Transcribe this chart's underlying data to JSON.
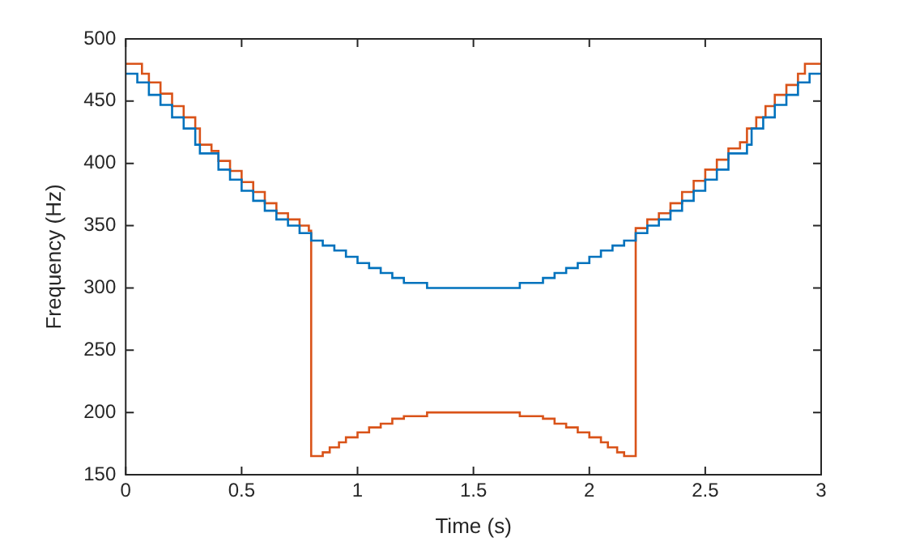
{
  "chart_data": {
    "type": "step",
    "xlabel": "Time (s)",
    "ylabel": "Frequency (Hz)",
    "xlim": [
      0,
      3
    ],
    "xticks": [
      0,
      0.5,
      1,
      1.5,
      2,
      2.5,
      3
    ],
    "ylim": [
      150,
      500
    ],
    "yticks": [
      150,
      200,
      250,
      300,
      350,
      400,
      450,
      500
    ],
    "grid": false,
    "legend": false,
    "series": [
      {
        "color": "#0072bd",
        "x": [
          0,
          0.05,
          0.1,
          0.15,
          0.2,
          0.25,
          0.3,
          0.32,
          0.4,
          0.45,
          0.5,
          0.55,
          0.6,
          0.65,
          0.7,
          0.75,
          0.8,
          0.85,
          0.9,
          0.95,
          1.0,
          1.05,
          1.1,
          1.15,
          1.2,
          1.3,
          1.7,
          1.8,
          1.85,
          1.9,
          1.95,
          2.0,
          2.05,
          2.1,
          2.15,
          2.2,
          2.25,
          2.3,
          2.35,
          2.4,
          2.45,
          2.5,
          2.55,
          2.6,
          2.68,
          2.7,
          2.75,
          2.8,
          2.85,
          2.9,
          2.95,
          3.0
        ],
        "values": [
          472,
          465,
          455,
          447,
          437,
          428,
          415,
          408,
          395,
          387,
          378,
          370,
          362,
          355,
          350,
          344,
          338,
          334,
          330,
          325,
          320,
          316,
          312,
          308,
          304,
          300,
          304,
          308,
          312,
          316,
          320,
          325,
          330,
          334,
          338,
          344,
          350,
          355,
          362,
          370,
          378,
          387,
          395,
          408,
          415,
          428,
          437,
          447,
          455,
          465,
          472,
          472
        ]
      },
      {
        "color": "#d95319",
        "x": [
          0,
          0.05,
          0.07,
          0.1,
          0.15,
          0.2,
          0.25,
          0.3,
          0.32,
          0.37,
          0.4,
          0.45,
          0.5,
          0.55,
          0.6,
          0.65,
          0.7,
          0.75,
          0.79,
          0.8,
          0.85,
          0.88,
          0.92,
          0.95,
          1.0,
          1.05,
          1.1,
          1.15,
          1.2,
          1.3,
          1.7,
          1.8,
          1.85,
          1.9,
          1.95,
          2.0,
          2.05,
          2.08,
          2.12,
          2.15,
          2.2,
          2.25,
          2.3,
          2.35,
          2.4,
          2.45,
          2.5,
          2.55,
          2.6,
          2.65,
          2.68,
          2.72,
          2.76,
          2.8,
          2.85,
          2.9,
          2.93,
          3.0
        ],
        "values": [
          480,
          480,
          472,
          465,
          456,
          446,
          437,
          428,
          415,
          410,
          402,
          394,
          385,
          377,
          368,
          360,
          355,
          350,
          346,
          165,
          168,
          172,
          176,
          180,
          184,
          188,
          191,
          195,
          197,
          200,
          197,
          195,
          191,
          188,
          184,
          180,
          176,
          172,
          168,
          165,
          348,
          355,
          360,
          368,
          377,
          386,
          395,
          403,
          412,
          417,
          428,
          437,
          446,
          455,
          463,
          472,
          480,
          480
        ]
      }
    ]
  }
}
